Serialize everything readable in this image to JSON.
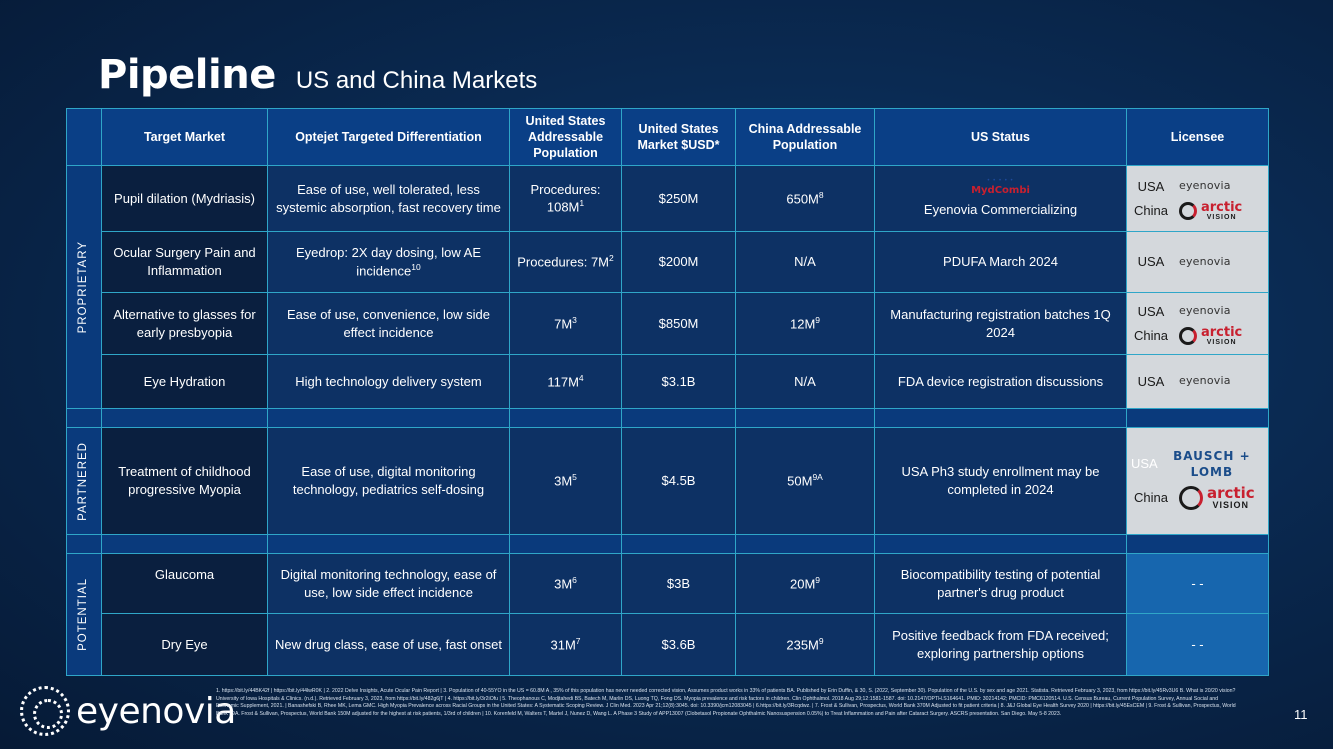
{
  "header": {
    "title": "Pipeline",
    "subtitle": "US and China Markets"
  },
  "columns": [
    "Target Market",
    "Optejet Targeted Differentiation",
    "United States Addressable Population",
    "United States Market $USD*",
    "China Addressable Population",
    "US Status",
    "Licensee"
  ],
  "groups": {
    "proprietary": "PROPRIETARY",
    "partnered": "PARTNERED",
    "potential": "POTENTIAL"
  },
  "rows": [
    {
      "target": "Pupil dilation (Mydriasis)",
      "diff": "Ease of use, well tolerated, less systemic absorption, fast recovery time",
      "us_pop": "Procedures: 108M",
      "us_pop_sup": "1",
      "us_market": "$250M",
      "china_pop": "650M",
      "china_pop_sup": "8",
      "status": "Eyenovia Commercializing",
      "status_logo": "MydCombi"
    },
    {
      "target": "Ocular Surgery Pain and Inflammation",
      "diff": "Eyedrop: 2X day dosing, low AE incidence",
      "diff_sup": "10",
      "us_pop": "Procedures: 7M",
      "us_pop_sup": "2",
      "us_market": "$200M",
      "china_pop": "N/A",
      "status": "PDUFA March 2024"
    },
    {
      "target": "Alternative to glasses for early presbyopia",
      "diff": "Ease of use, convenience, low side effect incidence",
      "us_pop": "7M",
      "us_pop_sup": "3",
      "us_market": "$850M",
      "china_pop": "12M",
      "china_pop_sup": "9",
      "status": "Manufacturing  registration batches 1Q 2024"
    },
    {
      "target": "Eye Hydration",
      "diff": "High technology delivery system",
      "us_pop": "117M",
      "us_pop_sup": "4",
      "us_market": "$3.1B",
      "china_pop": "N/A",
      "status": "FDA device registration discussions"
    },
    {
      "target": "Treatment of childhood progressive Myopia",
      "diff": "Ease of use, digital monitoring technology, pediatrics self-dosing",
      "us_pop": "3M",
      "us_pop_sup": "5",
      "us_market": "$4.5B",
      "china_pop": "50M",
      "china_pop_sup": "9A",
      "status": "USA Ph3 study enrollment may be completed in 2024"
    },
    {
      "target": "Glaucoma",
      "diff": "Digital monitoring technology, ease of use, low side effect incidence",
      "us_pop": "3M",
      "us_pop_sup": "6",
      "us_market": "$3B",
      "china_pop": "20M",
      "china_pop_sup": "9",
      "status": "Biocompatibility testing of potential partner's drug product",
      "licensee": "- -"
    },
    {
      "target": "Dry Eye",
      "diff": "New drug class, ease of use, fast onset",
      "us_pop": "31M",
      "us_pop_sup": "7",
      "us_market": "$3.6B",
      "china_pop": "235M",
      "china_pop_sup": "9",
      "status": "Positive feedback from FDA received; exploring partnership options",
      "licensee": "- -"
    }
  ],
  "licensees": {
    "usa": "USA",
    "china": "China",
    "eyenovia_logo": "eyenovia",
    "arctic_top": "arctic",
    "arctic_bottom": "VISION",
    "bausch": "BAUSCH + LOMB"
  },
  "footer": {
    "logo": "eyenovia",
    "page": "11",
    "footnotes": "1. https://bit.ly/44BK42f | https://bit.ly/44lwR0K | 2. 2022 Delve Insights, Acute Ocular Pain Report | 3. Population of 40-55YO in the US = 60.8M A , 35% of this population has never needed corrected vision, Assumes product works in 33% of patients BA. Published by Erin Duffin, & 30, S. (2022, September 30). Population of the U.S. by sex and age 2021. Statista. Retrieved February 3, 2023, from https://bit.ly/45Rv3U6 B. What is 20/20 vision? University of Iowa Hospitals & Clinics. (n.d.). Retrieved February 3, 2023, from https://bit.ly/482g6jT | 4. https://bit.ly/3r2iOfu | 5. Theophanous C, Modjtahedi BS, Batech M, Marlin DS, Luong TQ, Fong DS. Myopia prevalence and risk factors in children. Clin Ophthalmol. 2018 Aug 29;12:1581-1587. doi: 10.2147/OPTH.S164641. PMID: 30214142; PMCID: PMC6120514. U.S. Census Bureau, Current Population Survey, Annual Social and Economic Supplement, 2021. | Banashefski B, Rhee MK, Lema GMC. High Myopia Prevalence across Racial Groups in the United States: A Systematic Scoping Review. J Clin Med. 2023 Apr 21;12(8):3045. doi: 10.3390/jcm12083045 | 6.https://bit.ly/3Rcqdwz. | 7. Frost & Sullivan, Prospectus, World Bank 370M Adjusted to fit patient criteria | 8. J&J Global Eye Health Survey 2020 | https://bit.ly/45EsCEM | 9. Frost & Sullivan, Prospectus, World Bank | 9A. Frost & Sullivan, Prospectus, World Bank 150M adjusted for the highest at risk patients, 1/3rd of children | 10. Korenfeld M, Walters T, Martel J, Nunez D, Wang L. A Phase 3 Study of APP13007 (Clobetasol Propionate Ophthalmic Nanosuspension 0.05%) to Treat Inflammation and Pain after Cataract Surgery. ASCRS presentation. San Diego. May 5-8 2023."
  }
}
